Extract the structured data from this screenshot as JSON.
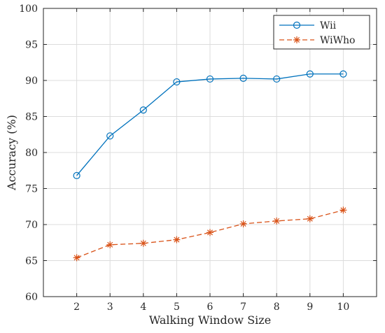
{
  "chart_data": {
    "type": "line",
    "xlabel": "Walking Window Size",
    "ylabel": "Accuracy (%)",
    "x": [
      2,
      3,
      4,
      5,
      6,
      7,
      8,
      9,
      10
    ],
    "xticks": [
      "2",
      "3",
      "4",
      "5",
      "6",
      "7",
      "8",
      "9",
      "10"
    ],
    "xlim": [
      1,
      11
    ],
    "ylim": [
      60,
      100
    ],
    "yticks": [
      "60",
      "65",
      "70",
      "75",
      "80",
      "85",
      "90",
      "95",
      "100"
    ],
    "grid": true,
    "legend_position": "top-right",
    "series": [
      {
        "name": "Wii",
        "values": [
          76.8,
          82.3,
          85.9,
          89.8,
          90.2,
          90.3,
          90.2,
          90.9,
          90.9
        ],
        "color": "#0072BD",
        "line": "solid",
        "marker": "circle"
      },
      {
        "name": "WiWho",
        "values": [
          65.4,
          67.2,
          67.4,
          67.9,
          68.9,
          70.1,
          70.5,
          70.8,
          72.0
        ],
        "color": "#D95319",
        "line": "dashed",
        "marker": "asterisk"
      }
    ]
  }
}
